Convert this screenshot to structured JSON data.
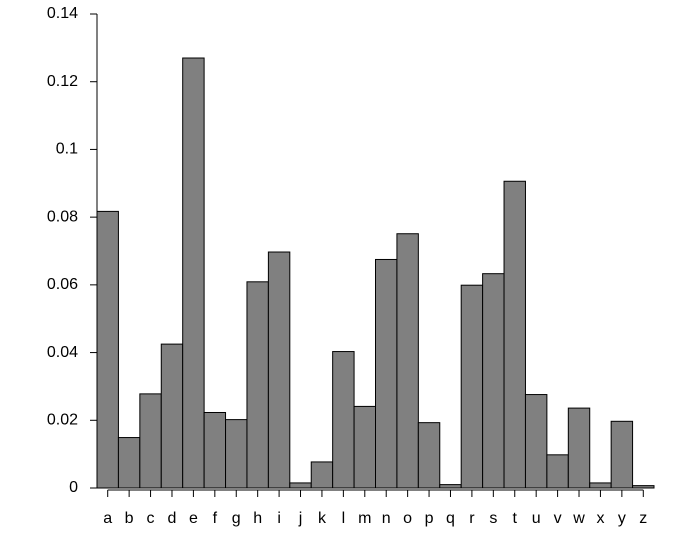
{
  "chart_data": {
    "type": "bar",
    "categories": [
      "a",
      "b",
      "c",
      "d",
      "e",
      "f",
      "g",
      "h",
      "i",
      "j",
      "k",
      "l",
      "m",
      "n",
      "o",
      "p",
      "q",
      "r",
      "s",
      "t",
      "u",
      "v",
      "w",
      "x",
      "y",
      "z"
    ],
    "values": [
      0.0817,
      0.0149,
      0.0278,
      0.0425,
      0.127,
      0.0223,
      0.0202,
      0.0609,
      0.0697,
      0.0015,
      0.0077,
      0.0403,
      0.0241,
      0.0675,
      0.0751,
      0.0193,
      0.001,
      0.0599,
      0.0633,
      0.0906,
      0.0276,
      0.0098,
      0.0236,
      0.0015,
      0.0197,
      0.0007
    ],
    "color": "#808080",
    "ylim": [
      0,
      0.14
    ],
    "yticks": [
      0,
      0.02,
      0.04,
      0.06,
      0.08,
      0.1,
      0.12,
      0.14
    ],
    "grid": false
  }
}
